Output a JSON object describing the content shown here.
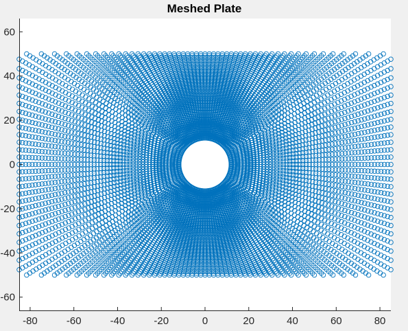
{
  "chart_data": {
    "type": "scatter",
    "title": "Meshed Plate",
    "xlabel": "",
    "ylabel": "",
    "xlim": [
      -85,
      85
    ],
    "ylim": [
      -66,
      66
    ],
    "xticks": [
      -80,
      -60,
      -40,
      -20,
      0,
      20,
      40,
      60,
      80
    ],
    "yticks": [
      -60,
      -40,
      -20,
      0,
      20,
      40,
      60
    ],
    "xtick_labels": [
      "-80",
      "-60",
      "-40",
      "-20",
      "0",
      "20",
      "40",
      "60",
      "80"
    ],
    "ytick_labels": [
      "-60",
      "-40",
      "-20",
      "0",
      "20",
      "40",
      "60"
    ],
    "grid": false,
    "legend": "none",
    "marker": "o",
    "marker_color": "#0072bd",
    "background": "#ffffff",
    "figure_background": "#f0f0f0",
    "series": [
      {
        "description_of_points": "structured mesh nodes of a rectangular plate with a central circular hole",
        "plate_x_range": [
          -85,
          85
        ],
        "plate_y_range": [
          -50,
          50
        ],
        "hole_center": [
          0,
          0
        ],
        "hole_radius": 12,
        "radial_nodes": 50,
        "angular_nodes": 160
      }
    ]
  }
}
